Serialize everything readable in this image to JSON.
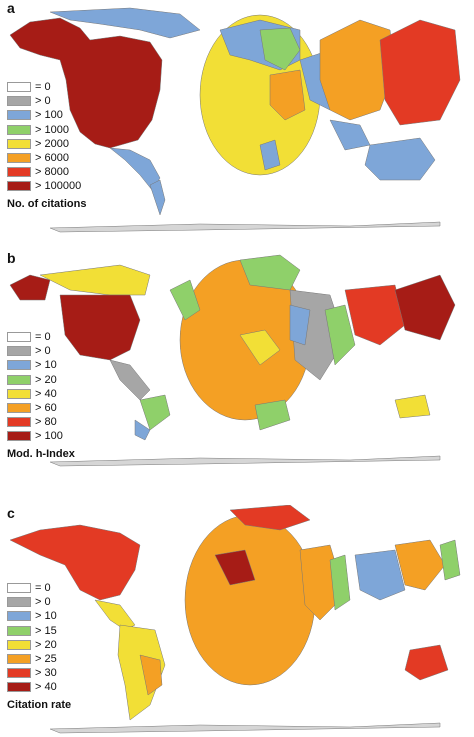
{
  "panels": [
    {
      "letter": "a",
      "title": "No. of citations",
      "legend": [
        {
          "label": "= 0",
          "color": "#ffffff"
        },
        {
          "label": "> 0",
          "color": "#a6a6a6"
        },
        {
          "label": "> 100",
          "color": "#7ea6d8"
        },
        {
          "label": "> 1000",
          "color": "#8fd06a"
        },
        {
          "label": "> 2000",
          "color": "#f2df36"
        },
        {
          "label": "> 6000",
          "color": "#f4a024"
        },
        {
          "label": "> 8000",
          "color": "#e33a24"
        },
        {
          "label": "> 100000",
          "color": "#a61c16"
        }
      ]
    },
    {
      "letter": "b",
      "title": "Mod. h-Index",
      "legend": [
        {
          "label": "= 0",
          "color": "#ffffff"
        },
        {
          "label": "> 0",
          "color": "#a6a6a6"
        },
        {
          "label": "> 10",
          "color": "#7ea6d8"
        },
        {
          "label": "> 20",
          "color": "#8fd06a"
        },
        {
          "label": "> 40",
          "color": "#f2df36"
        },
        {
          "label": "> 60",
          "color": "#f4a024"
        },
        {
          "label": "> 80",
          "color": "#e33a24"
        },
        {
          "label": "> 100",
          "color": "#a61c16"
        }
      ]
    },
    {
      "letter": "c",
      "title": "Citation rate",
      "legend": [
        {
          "label": "= 0",
          "color": "#ffffff"
        },
        {
          "label": "> 0",
          "color": "#a6a6a6"
        },
        {
          "label": "> 10",
          "color": "#7ea6d8"
        },
        {
          "label": "> 15",
          "color": "#8fd06a"
        },
        {
          "label": "> 20",
          "color": "#f2df36"
        },
        {
          "label": "> 25",
          "color": "#f4a024"
        },
        {
          "label": "> 30",
          "color": "#e33a24"
        },
        {
          "label": "> 40",
          "color": "#a61c16"
        }
      ]
    }
  ]
}
